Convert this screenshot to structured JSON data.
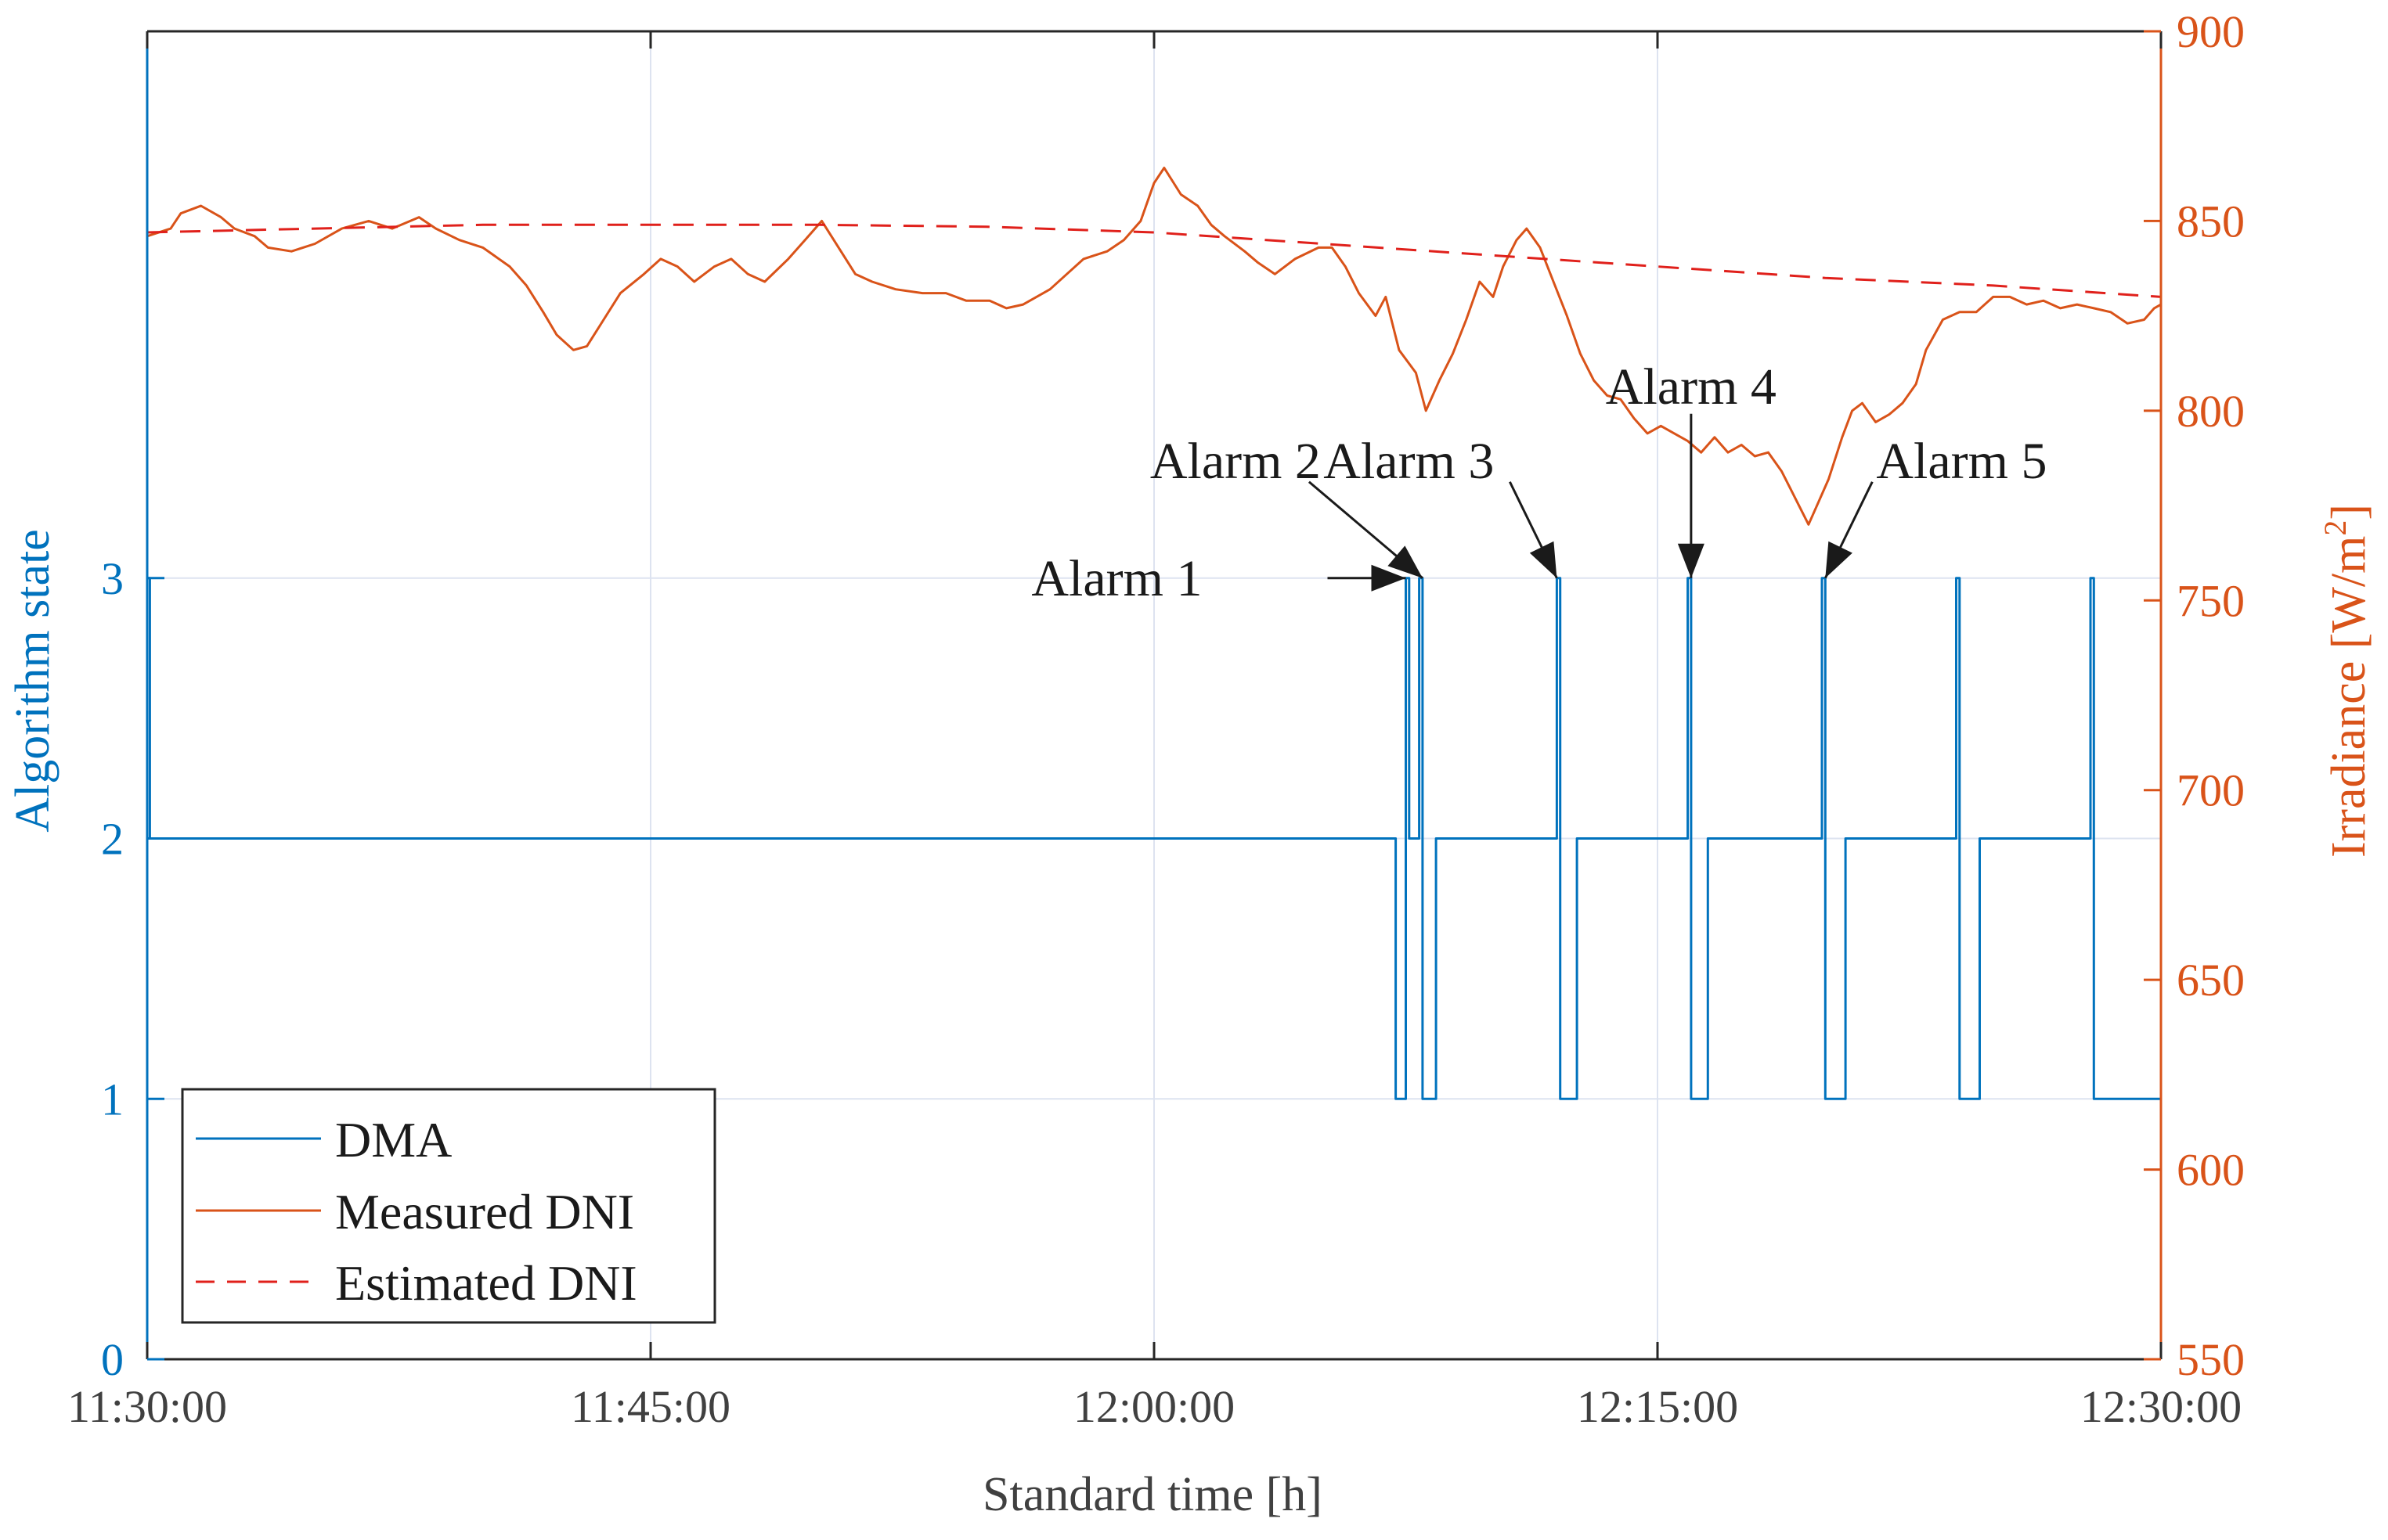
{
  "chart_data": {
    "type": "line",
    "xlabel": "Standard time [h]",
    "ylabel_left": "Algorithm state",
    "ylabel_right_prefix": "Irradiance [W/m",
    "ylabel_right_sup": "2",
    "ylabel_right_suffix": "]",
    "x_range_min": [
      0,
      60
    ],
    "x_ticks": [
      {
        "min": 0,
        "label": "11:30:00"
      },
      {
        "min": 15,
        "label": "11:45:00"
      },
      {
        "min": 30,
        "label": "12:00:00"
      },
      {
        "min": 45,
        "label": "12:15:00"
      },
      {
        "min": 60,
        "label": "12:30:00"
      }
    ],
    "y_left_range": [
      0,
      5.1
    ],
    "y_left_ticks": [
      0,
      1,
      2,
      3
    ],
    "y_right_range": [
      550,
      900
    ],
    "y_right_ticks": [
      550,
      600,
      650,
      700,
      750,
      800,
      850,
      900
    ],
    "grid": true,
    "legend_position": "bottom-left",
    "colors": {
      "dma": "#0072BD",
      "measured": "#D95319",
      "estimated": "#E0201B",
      "left_axis": "#0072BD",
      "right_axis": "#D95319",
      "grid": "#dde3f0",
      "frame": "#0072BD"
    },
    "series": [
      {
        "name": "DMA",
        "axis": "left",
        "style": "step",
        "points": [
          [
            0,
            3
          ],
          [
            0.08,
            3
          ],
          [
            0.08,
            2
          ],
          [
            37.2,
            2
          ],
          [
            37.2,
            1
          ],
          [
            37.5,
            1
          ],
          [
            37.5,
            3
          ],
          [
            37.6,
            3
          ],
          [
            37.6,
            2
          ],
          [
            37.9,
            2
          ],
          [
            37.9,
            3
          ],
          [
            38.0,
            3
          ],
          [
            38.0,
            1
          ],
          [
            38.4,
            1
          ],
          [
            38.4,
            2
          ],
          [
            42.0,
            2
          ],
          [
            42.0,
            3
          ],
          [
            42.1,
            3
          ],
          [
            42.1,
            1
          ],
          [
            42.6,
            1
          ],
          [
            42.6,
            2
          ],
          [
            45.9,
            2
          ],
          [
            45.9,
            3
          ],
          [
            46.0,
            3
          ],
          [
            46.0,
            1
          ],
          [
            46.5,
            1
          ],
          [
            46.5,
            2
          ],
          [
            49.9,
            2
          ],
          [
            49.9,
            3
          ],
          [
            50.0,
            3
          ],
          [
            50.0,
            1
          ],
          [
            50.6,
            1
          ],
          [
            50.6,
            2
          ],
          [
            53.9,
            2
          ],
          [
            53.9,
            3
          ],
          [
            54.0,
            3
          ],
          [
            54.0,
            1
          ],
          [
            54.6,
            1
          ],
          [
            54.6,
            2
          ],
          [
            57.9,
            2
          ],
          [
            57.9,
            3
          ],
          [
            58.0,
            3
          ],
          [
            58.0,
            1
          ],
          [
            60,
            1
          ]
        ]
      },
      {
        "name": "Measured DNI",
        "axis": "right",
        "style": "solid",
        "points": [
          [
            0,
            846
          ],
          [
            0.7,
            848
          ],
          [
            1,
            852
          ],
          [
            1.6,
            854
          ],
          [
            2.2,
            851
          ],
          [
            2.6,
            848
          ],
          [
            3.2,
            846
          ],
          [
            3.6,
            843
          ],
          [
            4.3,
            842
          ],
          [
            5,
            844
          ],
          [
            5.8,
            848
          ],
          [
            6.6,
            850
          ],
          [
            7.3,
            848
          ],
          [
            8.1,
            851
          ],
          [
            8.6,
            848
          ],
          [
            9.3,
            845
          ],
          [
            10,
            843
          ],
          [
            10.8,
            838
          ],
          [
            11.3,
            833
          ],
          [
            11.8,
            826
          ],
          [
            12.2,
            820
          ],
          [
            12.7,
            816
          ],
          [
            13.1,
            817
          ],
          [
            13.6,
            824
          ],
          [
            14.1,
            831
          ],
          [
            14.8,
            836
          ],
          [
            15.3,
            840
          ],
          [
            15.8,
            838
          ],
          [
            16.3,
            834
          ],
          [
            16.9,
            838
          ],
          [
            17.4,
            840
          ],
          [
            17.9,
            836
          ],
          [
            18.4,
            834
          ],
          [
            19.1,
            840
          ],
          [
            19.6,
            845
          ],
          [
            20.1,
            850
          ],
          [
            20.6,
            843
          ],
          [
            21.1,
            836
          ],
          [
            21.6,
            834
          ],
          [
            22.3,
            832
          ],
          [
            23.1,
            831
          ],
          [
            23.8,
            831
          ],
          [
            24.4,
            829
          ],
          [
            25.1,
            829
          ],
          [
            25.6,
            827
          ],
          [
            26.1,
            828
          ],
          [
            26.9,
            832
          ],
          [
            27.4,
            836
          ],
          [
            27.9,
            840
          ],
          [
            28.6,
            842
          ],
          [
            29.1,
            845
          ],
          [
            29.6,
            850
          ],
          [
            30.0,
            860
          ],
          [
            30.3,
            864
          ],
          [
            30.8,
            857
          ],
          [
            31.3,
            854
          ],
          [
            31.7,
            849
          ],
          [
            32.1,
            846
          ],
          [
            32.7,
            842
          ],
          [
            33.1,
            839
          ],
          [
            33.6,
            836
          ],
          [
            34.2,
            840
          ],
          [
            34.9,
            843
          ],
          [
            35.3,
            843
          ],
          [
            35.7,
            838
          ],
          [
            36.1,
            831
          ],
          [
            36.6,
            825
          ],
          [
            36.9,
            830
          ],
          [
            37.3,
            816
          ],
          [
            37.8,
            810
          ],
          [
            38.1,
            800
          ],
          [
            38.5,
            808
          ],
          [
            38.9,
            815
          ],
          [
            39.3,
            824
          ],
          [
            39.7,
            834
          ],
          [
            40.1,
            830
          ],
          [
            40.4,
            838
          ],
          [
            40.8,
            845
          ],
          [
            41.1,
            848
          ],
          [
            41.5,
            843
          ],
          [
            41.9,
            834
          ],
          [
            42.3,
            825
          ],
          [
            42.7,
            815
          ],
          [
            43.1,
            808
          ],
          [
            43.5,
            804
          ],
          [
            43.9,
            803
          ],
          [
            44.3,
            798
          ],
          [
            44.7,
            794
          ],
          [
            45.1,
            796
          ],
          [
            45.5,
            794
          ],
          [
            45.9,
            792
          ],
          [
            46.3,
            789
          ],
          [
            46.7,
            793
          ],
          [
            47.1,
            789
          ],
          [
            47.5,
            791
          ],
          [
            47.9,
            788
          ],
          [
            48.3,
            789
          ],
          [
            48.7,
            784
          ],
          [
            49.1,
            777
          ],
          [
            49.5,
            770
          ],
          [
            49.8,
            776
          ],
          [
            50.1,
            782
          ],
          [
            50.5,
            793
          ],
          [
            50.8,
            800
          ],
          [
            51.1,
            802
          ],
          [
            51.5,
            797
          ],
          [
            51.9,
            799
          ],
          [
            52.3,
            802
          ],
          [
            52.7,
            807
          ],
          [
            53.0,
            816
          ],
          [
            53.5,
            824
          ],
          [
            54.0,
            826
          ],
          [
            54.5,
            826
          ],
          [
            55.0,
            830
          ],
          [
            55.5,
            830
          ],
          [
            56.0,
            828
          ],
          [
            56.5,
            829
          ],
          [
            57.0,
            827
          ],
          [
            57.5,
            828
          ],
          [
            58.0,
            827
          ],
          [
            58.5,
            826
          ],
          [
            59.0,
            823
          ],
          [
            59.5,
            824
          ],
          [
            59.8,
            827
          ],
          [
            60,
            828
          ]
        ]
      },
      {
        "name": "Estimated DNI",
        "axis": "right",
        "style": "dashed",
        "points": [
          [
            0,
            847
          ],
          [
            5,
            848
          ],
          [
            10,
            849
          ],
          [
            15,
            849
          ],
          [
            20,
            849
          ],
          [
            25,
            848.5
          ],
          [
            30,
            847
          ],
          [
            35,
            844
          ],
          [
            40,
            841
          ],
          [
            45,
            838
          ],
          [
            50,
            835
          ],
          [
            55,
            833
          ],
          [
            60,
            830
          ]
        ]
      }
    ],
    "annotations": [
      {
        "text": "Alarm 1",
        "tip_min": 37.5,
        "tip_state": 3
      },
      {
        "text": "Alarm 2",
        "tip_min": 38.0,
        "tip_state": 3
      },
      {
        "text": "Alarm 3",
        "tip_min": 42.0,
        "tip_state": 3
      },
      {
        "text": "Alarm 4",
        "tip_min": 46.0,
        "tip_state": 3
      },
      {
        "text": "Alarm 5",
        "tip_min": 50.0,
        "tip_state": 3
      }
    ]
  }
}
